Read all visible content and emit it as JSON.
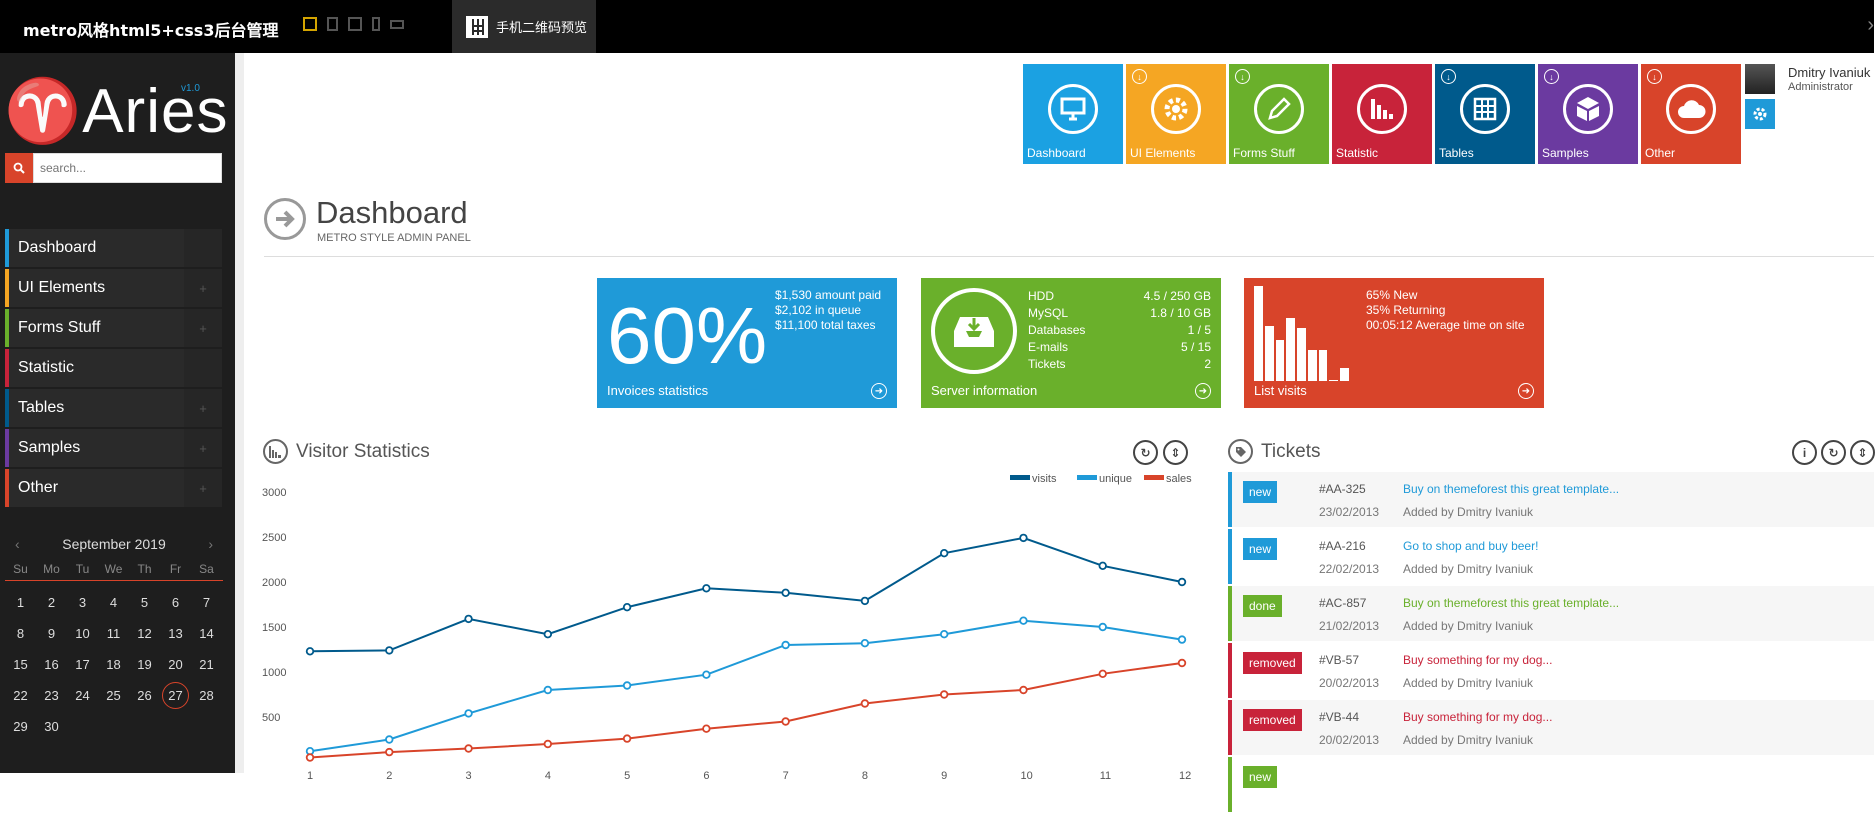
{
  "topbar": {
    "title": "metro风格html5+css3后台管理",
    "qr_label": "手机二维码预览",
    "close": "›"
  },
  "sidebar": {
    "logo": "♈Aries",
    "version": "v1.0",
    "search_placeholder": "search...",
    "items": [
      {
        "label": "Dashboard",
        "color": "#1f9ad8",
        "expandable": false
      },
      {
        "label": "UI Elements",
        "color": "#f5a623",
        "expandable": true
      },
      {
        "label": "Forms Stuff",
        "color": "#6ab02b",
        "expandable": true
      },
      {
        "label": "Statistic",
        "color": "#c8233a",
        "expandable": false
      },
      {
        "label": "Tables",
        "color": "#005a8c",
        "expandable": true
      },
      {
        "label": "Samples",
        "color": "#6b3aa0",
        "expandable": true
      },
      {
        "label": "Other",
        "color": "#d8442a",
        "expandable": true
      }
    ]
  },
  "calendar": {
    "month": "September 2019",
    "prev": "‹",
    "next": "›",
    "weekdays": [
      "Su",
      "Mo",
      "Tu",
      "We",
      "Th",
      "Fr",
      "Sa"
    ],
    "days": [
      "1",
      "2",
      "3",
      "4",
      "5",
      "6",
      "7",
      "8",
      "9",
      "10",
      "11",
      "12",
      "13",
      "14",
      "15",
      "16",
      "17",
      "18",
      "19",
      "20",
      "21",
      "22",
      "23",
      "24",
      "25",
      "26",
      "27",
      "28",
      "29",
      "30"
    ],
    "today": "27"
  },
  "tiles": [
    {
      "label": "Dashboard",
      "color": "#1ba1e2",
      "icon": "monitor-icon",
      "download": false
    },
    {
      "label": "UI Elements",
      "color": "#f5a623",
      "icon": "gear-icon",
      "download": true
    },
    {
      "label": "Forms Stuff",
      "color": "#6ab02b",
      "icon": "pencil-icon",
      "download": true
    },
    {
      "label": "Statistic",
      "color": "#c8233a",
      "icon": "bar-chart-icon",
      "download": false
    },
    {
      "label": "Tables",
      "color": "#005a8c",
      "icon": "grid-icon",
      "download": true
    },
    {
      "label": "Samples",
      "color": "#6b3aa0",
      "icon": "box-icon",
      "download": true
    },
    {
      "label": "Other",
      "color": "#d8442a",
      "icon": "cloud-icon",
      "download": true
    }
  ],
  "user": {
    "name": "Dmitry Ivaniuk",
    "role": "Administrator"
  },
  "page": {
    "title": "Dashboard",
    "subtitle": "METRO STYLE ADMIN PANEL"
  },
  "stats": {
    "invoices": {
      "percent": "60%",
      "lines": [
        "$1,530 amount paid",
        "$2,102 in queue",
        "$11,100 total taxes"
      ],
      "footer": "Invoices statistics",
      "color": "#1f9ad8"
    },
    "server": {
      "rows": [
        {
          "key": "HDD",
          "value": "4.5 / 250 GB"
        },
        {
          "key": "MySQL",
          "value": "1.8 / 10 GB"
        },
        {
          "key": "Databases",
          "value": "1 / 5"
        },
        {
          "key": "E-mails",
          "value": "5 / 15"
        },
        {
          "key": "Tickets",
          "value": "2"
        }
      ],
      "footer": "Server information",
      "color": "#6ab02b"
    },
    "visits": {
      "lines": [
        "65% New",
        "35% Returning",
        "00:05:12 Average time on site"
      ],
      "bars": [
        1.0,
        0.58,
        0.43,
        0.66,
        0.56,
        0.33,
        0.33,
        0.0,
        0.14
      ],
      "footer": "List visits",
      "color": "#d8442a"
    }
  },
  "visitor": {
    "title": "Visitor Statistics"
  },
  "tickets_section": {
    "title": "Tickets",
    "items": [
      {
        "status": "new",
        "status_color": "#1f9ad8",
        "id": "#AA-325",
        "date": "23/02/2013",
        "text": "Buy on themeforest this great template...",
        "by": "Added by Dmitry Ivaniuk"
      },
      {
        "status": "new",
        "status_color": "#1f9ad8",
        "id": "#AA-216",
        "date": "22/02/2013",
        "text": "Go to shop and buy beer!",
        "by": "Added by Dmitry Ivaniuk"
      },
      {
        "status": "done",
        "status_color": "#6ab02b",
        "id": "#AC-857",
        "date": "21/02/2013",
        "text": "Buy on themeforest this great template...",
        "by": "Added by Dmitry Ivaniuk"
      },
      {
        "status": "removed",
        "status_color": "#c8233a",
        "id": "#VB-57",
        "date": "20/02/2013",
        "text": "Buy something for my dog...",
        "by": "Added by Dmitry Ivaniuk"
      },
      {
        "status": "removed",
        "status_color": "#c8233a",
        "id": "#VB-44",
        "date": "20/02/2013",
        "text": "Buy something for my dog...",
        "by": "Added by Dmitry Ivaniuk"
      },
      {
        "status": "new",
        "status_color": "#6ab02b",
        "id": "",
        "date": "",
        "text": "",
        "by": ""
      }
    ]
  },
  "chart_data": {
    "type": "line",
    "x": [
      1,
      2,
      3,
      4,
      5,
      6,
      7,
      8,
      9,
      10,
      11,
      12
    ],
    "series": [
      {
        "name": "visits",
        "color": "#005a8c",
        "values": [
          1230,
          1240,
          1590,
          1420,
          1720,
          1930,
          1880,
          1790,
          2320,
          2490,
          2180,
          2000
        ]
      },
      {
        "name": "unique",
        "color": "#1f9ad8",
        "values": [
          120,
          250,
          540,
          800,
          850,
          970,
          1300,
          1320,
          1420,
          1570,
          1500,
          1360
        ]
      },
      {
        "name": "sales",
        "color": "#d8442a",
        "values": [
          50,
          110,
          150,
          200,
          260,
          370,
          450,
          650,
          750,
          800,
          980,
          1100
        ]
      }
    ],
    "yticks": [
      500,
      1000,
      1500,
      2000,
      2500,
      3000
    ],
    "ylim": [
      0,
      3000
    ],
    "xlim": [
      1,
      12
    ],
    "legend_position": "top-right",
    "grid": false
  }
}
